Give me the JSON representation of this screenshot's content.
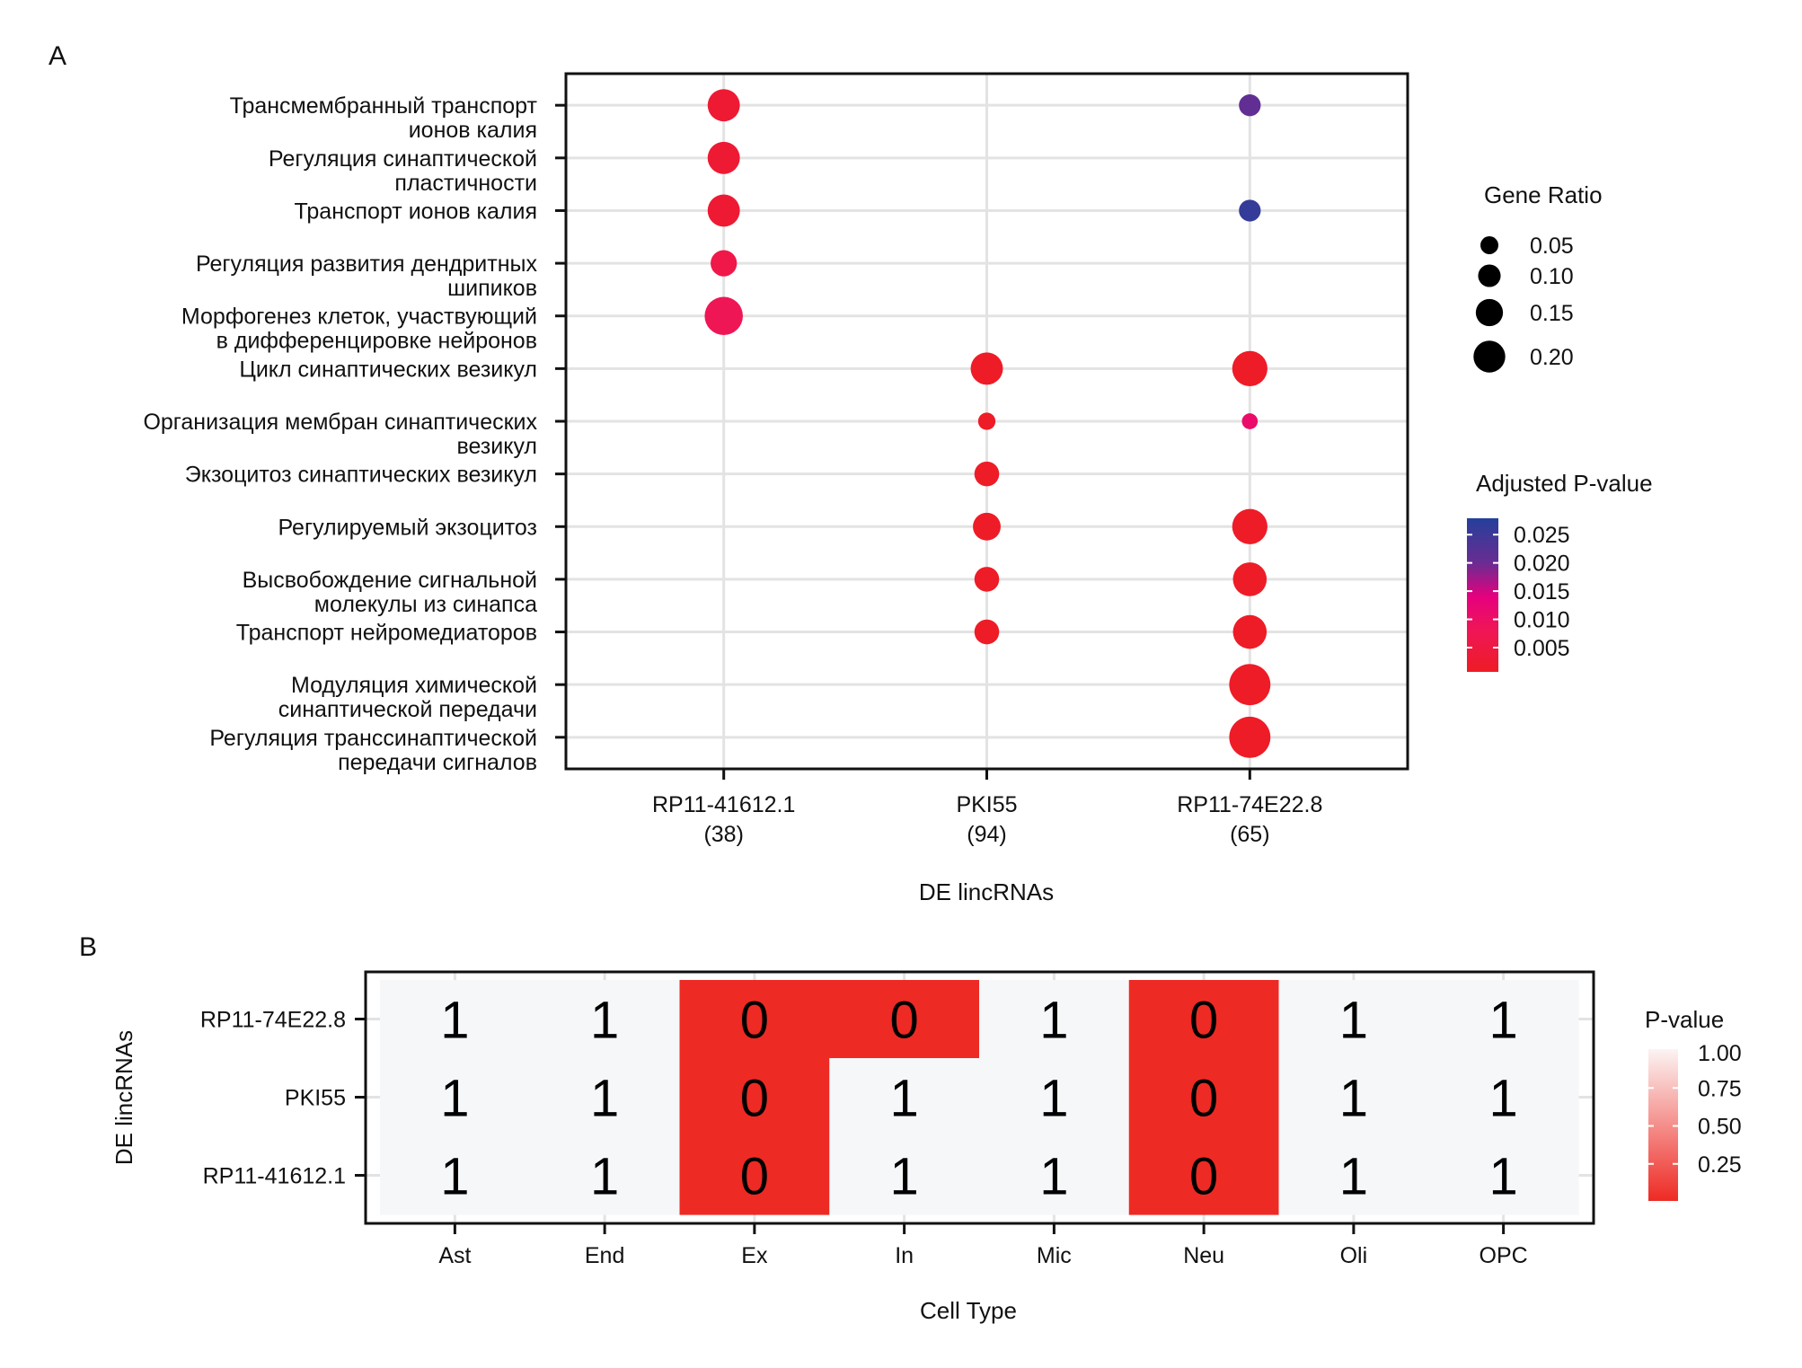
{
  "panels": {
    "a_label": "A",
    "b_label": "B"
  },
  "chart_data": [
    {
      "type": "scatter",
      "subtype": "dotplot",
      "title": "",
      "xlabel": "DE lincRNAs",
      "ylabel": "",
      "categories_x": [
        {
          "name": "RP11-41612.1",
          "count": "(38)"
        },
        {
          "name": "PKI55",
          "count": "(94)"
        },
        {
          "name": "RP11-74E22.8",
          "count": "(65)"
        }
      ],
      "categories_y": [
        [
          "Трансмембранный транспорт",
          "ионов калия"
        ],
        [
          "Регуляция синаптической",
          "пластичности"
        ],
        [
          "Транспорт ионов калия"
        ],
        [
          "Регуляция развития дендритных",
          "шипиков"
        ],
        [
          "Морфогенез клеток, участвующий",
          "в дифференцировке нейронов"
        ],
        [
          "Цикл синаптических везикул"
        ],
        [
          "Организация мембран синаптических",
          "везикул"
        ],
        [
          "Экзоцитоз синаптических везикул"
        ],
        [
          "Регулируемый экзоцитоз"
        ],
        [
          "Высвобождение сигнальной",
          "молекулы из синапса"
        ],
        [
          "Транспорт нейромедиаторов"
        ],
        [
          "Модуляция химической",
          "синаптической передачи"
        ],
        [
          "Регуляция транссинаптической",
          "передачи сигналов"
        ]
      ],
      "points": [
        {
          "x": 0,
          "y": 0,
          "gene_ratio": 0.15,
          "p_adj": 0.003
        },
        {
          "x": 0,
          "y": 1,
          "gene_ratio": 0.15,
          "p_adj": 0.003
        },
        {
          "x": 0,
          "y": 2,
          "gene_ratio": 0.15,
          "p_adj": 0.003
        },
        {
          "x": 0,
          "y": 3,
          "gene_ratio": 0.11,
          "p_adj": 0.006
        },
        {
          "x": 0,
          "y": 4,
          "gene_ratio": 0.19,
          "p_adj": 0.008
        },
        {
          "x": 2,
          "y": 0,
          "gene_ratio": 0.08,
          "p_adj": 0.021
        },
        {
          "x": 2,
          "y": 2,
          "gene_ratio": 0.08,
          "p_adj": 0.026
        },
        {
          "x": 1,
          "y": 5,
          "gene_ratio": 0.15,
          "p_adj": 0.001
        },
        {
          "x": 2,
          "y": 5,
          "gene_ratio": 0.17,
          "p_adj": 0.001
        },
        {
          "x": 1,
          "y": 6,
          "gene_ratio": 0.05,
          "p_adj": 0.001
        },
        {
          "x": 2,
          "y": 6,
          "gene_ratio": 0.04,
          "p_adj": 0.011
        },
        {
          "x": 1,
          "y": 7,
          "gene_ratio": 0.1,
          "p_adj": 0.001
        },
        {
          "x": 1,
          "y": 8,
          "gene_ratio": 0.12,
          "p_adj": 0.001
        },
        {
          "x": 2,
          "y": 8,
          "gene_ratio": 0.17,
          "p_adj": 0.001
        },
        {
          "x": 1,
          "y": 9,
          "gene_ratio": 0.1,
          "p_adj": 0.001
        },
        {
          "x": 2,
          "y": 9,
          "gene_ratio": 0.16,
          "p_adj": 0.001
        },
        {
          "x": 1,
          "y": 10,
          "gene_ratio": 0.1,
          "p_adj": 0.001
        },
        {
          "x": 2,
          "y": 10,
          "gene_ratio": 0.16,
          "p_adj": 0.001
        },
        {
          "x": 2,
          "y": 11,
          "gene_ratio": 0.21,
          "p_adj": 0.001
        },
        {
          "x": 2,
          "y": 12,
          "gene_ratio": 0.21,
          "p_adj": 0.001
        }
      ],
      "legend_size": {
        "title": "Gene Ratio",
        "values": [
          0.05,
          0.1,
          0.15,
          0.2
        ],
        "labels": [
          "0.05",
          "0.10",
          "0.15",
          "0.20"
        ],
        "placement": "right"
      },
      "legend_color": {
        "title": "Adjusted P-value",
        "ticks": [
          0.025,
          0.02,
          0.015,
          0.01,
          0.005
        ],
        "labels": [
          "0.025",
          "0.020",
          "0.015",
          "0.010",
          "0.005"
        ],
        "range": [
          0.0007,
          0.0279
        ],
        "gradient": [
          {
            "v": 0.0007,
            "color": "#ee1c25"
          },
          {
            "v": 0.008,
            "color": "#ef1656"
          },
          {
            "v": 0.014,
            "color": "#e6007e"
          },
          {
            "v": 0.02,
            "color": "#6a2c93"
          },
          {
            "v": 0.0279,
            "color": "#24409a"
          }
        ],
        "placement": "right"
      },
      "grid": true
    },
    {
      "type": "heatmap",
      "title": "",
      "xlabel": "Cell Type",
      "ylabel": "DE lincRNAs",
      "x": [
        "Ast",
        "End",
        "Ex",
        "In",
        "Mic",
        "Neu",
        "Oli",
        "OPC"
      ],
      "y": [
        "RP11-74E22.8",
        "PKI55",
        "RP11-41612.1"
      ],
      "values": [
        [
          1,
          1,
          0,
          0,
          1,
          0,
          1,
          1
        ],
        [
          1,
          1,
          0,
          1,
          1,
          0,
          1,
          1
        ],
        [
          1,
          1,
          0,
          1,
          1,
          0,
          1,
          1
        ]
      ],
      "legend": {
        "title": "P-value",
        "ticks": [
          1.0,
          0.75,
          0.5,
          0.25
        ],
        "labels": [
          "1.00",
          "0.75",
          "0.50",
          "0.25"
        ],
        "range": [
          0,
          1
        ],
        "low_color": "#ee2a24",
        "high_color": "#f5f7f8",
        "placement": "right"
      },
      "grid": true
    }
  ]
}
